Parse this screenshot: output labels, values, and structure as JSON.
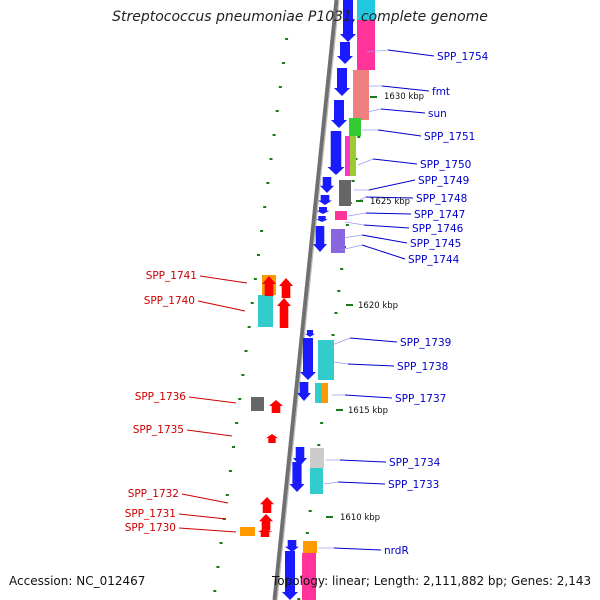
{
  "title": "Streptococcus pneumoniae P1031, complete genome",
  "accession": "Accession: NC_012467",
  "summary": "Topology: linear; Length: 2,111,882 bp; Genes: 2,143",
  "colors": {
    "backbone": "#808080",
    "right_label": "#0000cc",
    "left_label": "#cc0000",
    "tick": "#1a7a1a"
  },
  "kbp_marks": [
    "1630 kbp",
    "1625 kbp",
    "1620 kbp",
    "1615 kbp",
    "1610 kbp"
  ],
  "right_genes": [
    "SPP_1754",
    "fmt",
    "sun",
    "SPP_1751",
    "SPP_1750",
    "SPP_1749",
    "SPP_1748",
    "SPP_1747",
    "SPP_1746",
    "SPP_1745",
    "SPP_1744",
    "SPP_1739",
    "SPP_1738",
    "SPP_1737",
    "SPP_1734",
    "SPP_1733",
    "nrdR"
  ],
  "left_genes": [
    "SPP_1741",
    "SPP_1740",
    "SPP_1736",
    "SPP_1735",
    "SPP_1732",
    "SPP_1731",
    "SPP_1730"
  ]
}
